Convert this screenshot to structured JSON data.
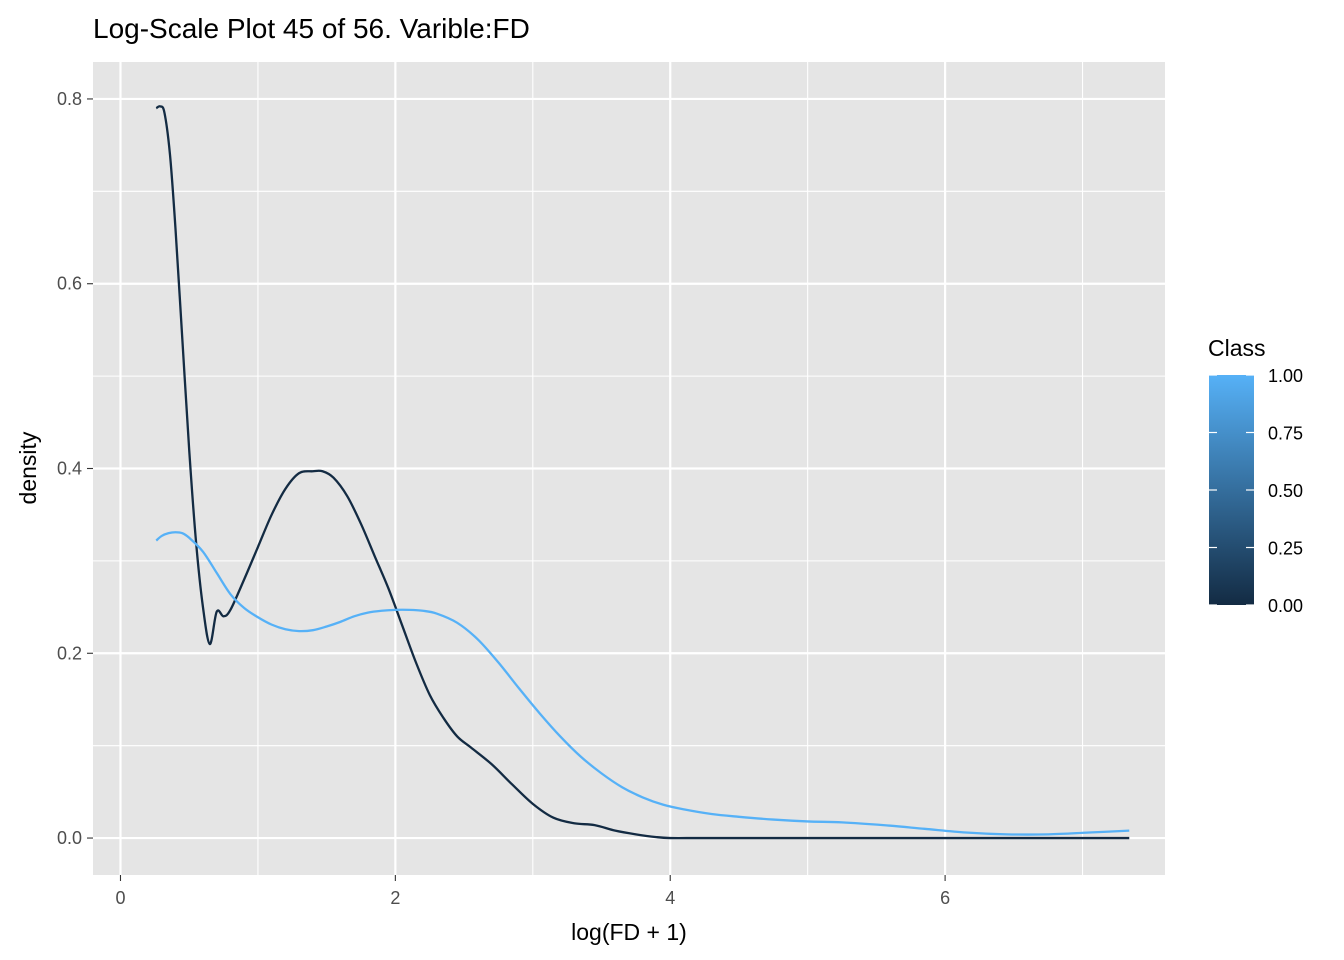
{
  "chart_data": {
    "type": "line",
    "title": "Log-Scale Plot 45 of 56. Varible:FD",
    "xlabel": "log(FD + 1)",
    "ylabel": "density",
    "xlim": [
      -0.2,
      7.6
    ],
    "ylim": [
      -0.04,
      0.84
    ],
    "x_ticks": [
      0,
      2,
      4,
      6
    ],
    "x_tick_labels": [
      "0",
      "2",
      "4",
      "6"
    ],
    "y_ticks": [
      0.0,
      0.2,
      0.4,
      0.6,
      0.8
    ],
    "y_tick_labels": [
      "0.0",
      "0.2",
      "0.4",
      "0.6",
      "0.8"
    ],
    "grid": true,
    "background": "#e5e5e5",
    "legend": {
      "title": "Class",
      "position": "right",
      "type": "colorbar",
      "labels": [
        "1.00",
        "0.75",
        "0.50",
        "0.25",
        "0.00"
      ],
      "values": [
        1.0,
        0.75,
        0.5,
        0.25,
        0.0
      ],
      "color_low": "#132b43",
      "color_high": "#56b1f7"
    },
    "series": [
      {
        "class_value": 0,
        "color": "#132b43",
        "x": [
          0.26,
          0.29,
          0.32,
          0.36,
          0.4,
          0.45,
          0.5,
          0.55,
          0.6,
          0.65,
          0.7,
          0.75,
          0.8,
          0.9,
          1.0,
          1.1,
          1.2,
          1.3,
          1.4,
          1.47,
          1.55,
          1.65,
          1.75,
          1.85,
          1.95,
          2.05,
          2.15,
          2.25,
          2.35,
          2.45,
          2.55,
          2.7,
          2.85,
          3.0,
          3.15,
          3.3,
          3.45,
          3.6,
          3.75,
          3.9,
          4.0,
          4.2,
          4.5,
          5.0,
          5.5,
          6.0,
          6.5,
          7.0,
          7.34
        ],
        "y": [
          0.79,
          0.792,
          0.785,
          0.74,
          0.66,
          0.54,
          0.42,
          0.32,
          0.25,
          0.21,
          0.245,
          0.24,
          0.247,
          0.28,
          0.315,
          0.35,
          0.378,
          0.395,
          0.397,
          0.397,
          0.39,
          0.37,
          0.34,
          0.305,
          0.27,
          0.23,
          0.19,
          0.155,
          0.13,
          0.11,
          0.098,
          0.08,
          0.058,
          0.037,
          0.022,
          0.016,
          0.014,
          0.008,
          0.004,
          0.001,
          0.0,
          0.0,
          0.0,
          0.0,
          0.0,
          0.0,
          0.0,
          0.0,
          0.0
        ]
      },
      {
        "class_value": 1,
        "color": "#56b1f7",
        "x": [
          0.26,
          0.3,
          0.35,
          0.4,
          0.45,
          0.5,
          0.6,
          0.7,
          0.8,
          0.9,
          1.0,
          1.1,
          1.2,
          1.3,
          1.4,
          1.5,
          1.6,
          1.7,
          1.8,
          1.9,
          2.0,
          2.1,
          2.2,
          2.3,
          2.45,
          2.6,
          2.75,
          2.9,
          3.05,
          3.2,
          3.35,
          3.5,
          3.65,
          3.8,
          3.95,
          4.1,
          4.3,
          4.5,
          4.75,
          5.0,
          5.25,
          5.55,
          5.85,
          6.15,
          6.45,
          6.75,
          7.05,
          7.34
        ],
        "y": [
          0.322,
          0.327,
          0.33,
          0.331,
          0.33,
          0.325,
          0.31,
          0.287,
          0.264,
          0.249,
          0.239,
          0.231,
          0.226,
          0.224,
          0.225,
          0.229,
          0.234,
          0.24,
          0.244,
          0.246,
          0.247,
          0.247,
          0.246,
          0.243,
          0.233,
          0.215,
          0.19,
          0.162,
          0.135,
          0.11,
          0.088,
          0.07,
          0.055,
          0.044,
          0.036,
          0.031,
          0.026,
          0.023,
          0.02,
          0.018,
          0.017,
          0.014,
          0.01,
          0.006,
          0.004,
          0.004,
          0.006,
          0.008
        ]
      }
    ]
  }
}
